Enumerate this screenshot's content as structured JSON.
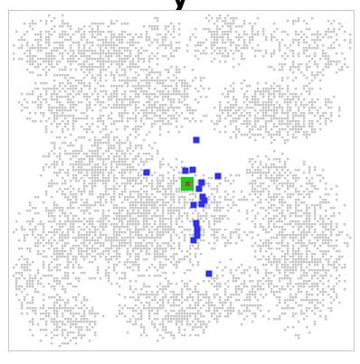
{
  "header": {
    "title_fragment": "y"
  },
  "board": {
    "colors": {
      "background": "#ffffff",
      "border": "#c8c8c8",
      "terrain": "#c4c4c4",
      "agent": "#2f2ff0",
      "goal": "#22c822",
      "player": "#e62828"
    },
    "icons": {
      "terrain": "terrain-cell",
      "agent": "agent-square",
      "goal": "goal-square",
      "player": "player-square"
    }
  }
}
